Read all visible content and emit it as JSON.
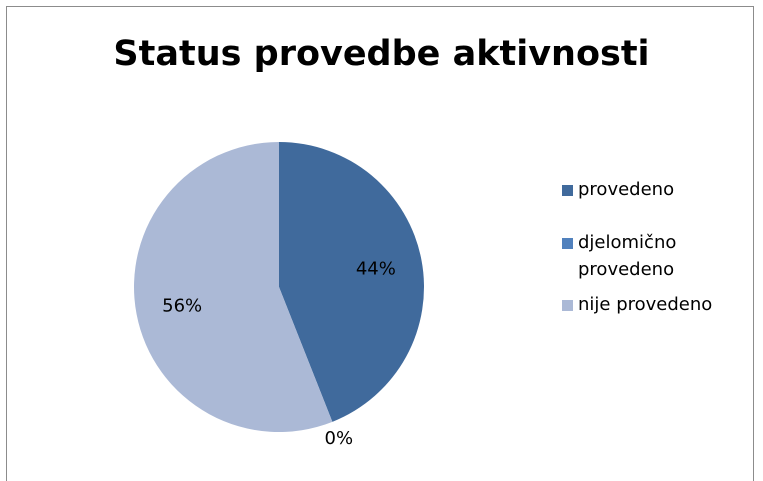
{
  "chart_data": {
    "type": "pie",
    "title": "Status provedbe aktivnosti",
    "series": [
      {
        "values": [
          44,
          0,
          56
        ],
        "data_labels": [
          "44%",
          "0%",
          "56%"
        ]
      }
    ],
    "categories": [
      "provedeno",
      "djelomično provedeno",
      "nije provedeno"
    ],
    "colors": [
      "#406A9C",
      "#5181BD",
      "#ABB9D6"
    ],
    "legend_position": "right"
  },
  "legend": [
    {
      "text": "provedeno",
      "color": "#406A9C"
    },
    {
      "text": "djelomično provedeno",
      "color": "#5181BD"
    },
    {
      "text": "nije provedeno",
      "color": "#ABB9D6"
    }
  ]
}
